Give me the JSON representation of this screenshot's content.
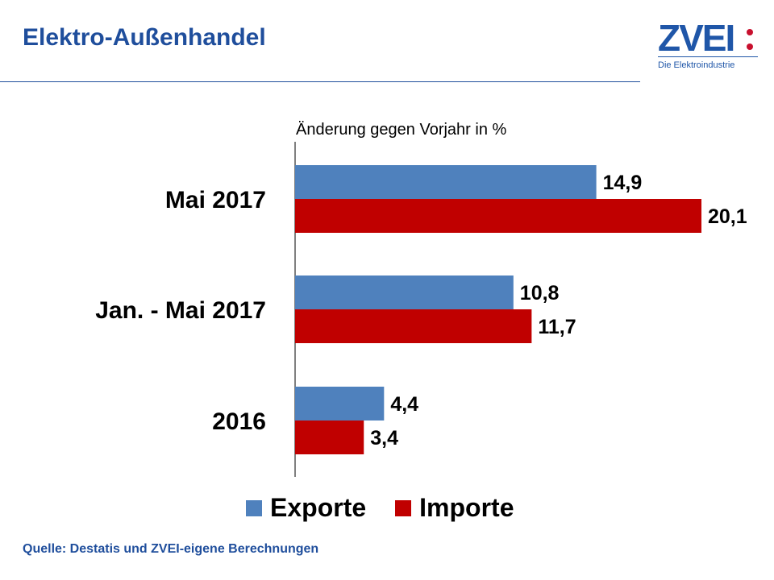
{
  "header": {
    "title": "Elektro-Außenhandel"
  },
  "logo": {
    "name": "ZVEI",
    "tagline": "Die Elektroindustrie",
    "color": "#1f56a8",
    "accent_color": "#c8102e"
  },
  "source": "Quelle: Destatis und ZVEI-eigene Berechnungen",
  "chart_data": {
    "type": "bar",
    "orientation": "horizontal",
    "title": "",
    "subtitle": "Änderung gegen Vorjahr in %",
    "categories": [
      "Mai 2017",
      "Jan. - Mai 2017",
      "2016"
    ],
    "series": [
      {
        "name": "Exporte",
        "color": "#4f81bd",
        "values": [
          14.9,
          10.8,
          4.4
        ],
        "labels": [
          "14,9",
          "10,8",
          "4,4"
        ]
      },
      {
        "name": "Importe",
        "color": "#c00000",
        "values": [
          20.1,
          11.7,
          3.4
        ],
        "labels": [
          "20,1",
          "11,7",
          "3,4"
        ]
      }
    ],
    "xlim": [
      0,
      20.1
    ],
    "grid": false,
    "legend_position": "bottom"
  }
}
